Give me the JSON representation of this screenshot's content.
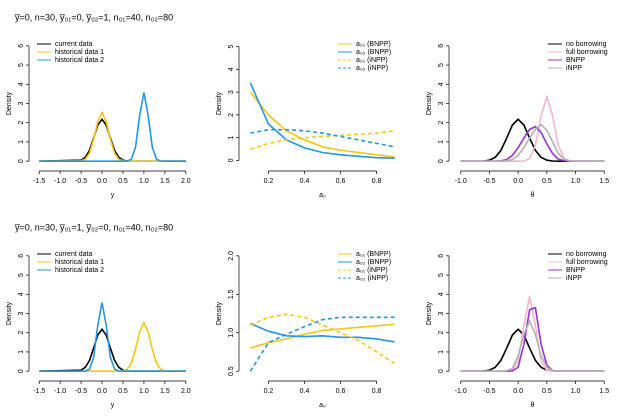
{
  "chart_data": [
    {
      "type": "line",
      "title": "y̅=0, n=30, y̅₀₁=0, y̅₀₂=1, n₀₁=40, n₀₂=80",
      "xlabel": "y",
      "ylabel": "Density",
      "legend": "top-left",
      "x": [
        -1.5,
        -0.5,
        -0.4,
        -0.3,
        -0.2,
        -0.1,
        0,
        0.1,
        0.2,
        0.3,
        0.4,
        0.5,
        0.6,
        0.7,
        0.8,
        0.9,
        1.0,
        1.1,
        1.2,
        1.3,
        1.4,
        1.5,
        2.0
      ],
      "xlim": [
        -1.6,
        2.1
      ],
      "xticks": [
        -1.5,
        {
          "value": -1,
          "label": "-1.0"
        },
        -0.5,
        {
          "value": 0,
          "label": "0.0"
        },
        0.5,
        {
          "value": 1,
          "label": "1.0"
        },
        1.5,
        {
          "value": 2,
          "label": "2.0"
        }
      ],
      "ylim": [
        -0.2,
        6.2
      ],
      "yticks": [
        0,
        1,
        2,
        3,
        4,
        5,
        6
      ],
      "series": [
        {
          "name": "current data",
          "color": "#000000",
          "values": [
            0,
            0.05,
            0.2,
            0.56,
            1.2,
            1.88,
            2.18,
            1.88,
            1.2,
            0.56,
            0.2,
            0.05,
            0.01,
            0,
            0,
            0,
            0,
            0,
            0,
            0,
            0,
            0,
            0
          ]
        },
        {
          "name": "historical data 1",
          "color": "#f5c710",
          "values": [
            0,
            0.02,
            0.1,
            0.42,
            1.13,
            2.06,
            2.52,
            2.06,
            1.13,
            0.42,
            0.1,
            0.02,
            0,
            0,
            0,
            0,
            0,
            0,
            0,
            0,
            0,
            0,
            0
          ]
        },
        {
          "name": "historical data 2",
          "color": "#2297e6",
          "values": [
            0,
            0,
            0,
            0,
            0,
            0,
            0,
            0,
            0,
            0,
            0,
            0,
            0.01,
            0.1,
            0.72,
            2.39,
            3.57,
            2.39,
            0.72,
            0.1,
            0.01,
            0,
            0
          ]
        }
      ]
    },
    {
      "type": "line",
      "xlabel": "a₀",
      "ylabel": "Density",
      "legend": "top-right",
      "x": [
        0.1,
        0.2,
        0.3,
        0.4,
        0.5,
        0.6,
        0.7,
        0.8,
        0.9
      ],
      "xlim": [
        0.07,
        0.93
      ],
      "xticks": [
        0.2,
        0.4,
        0.6,
        0.8
      ],
      "ylim": [
        -0.2,
        5.2
      ],
      "yticks": [
        0,
        1,
        2,
        3,
        4,
        5
      ],
      "series": [
        {
          "name": "a₀₁ (BNPP)",
          "color": "#f5c710",
          "dash": false,
          "values": [
            3.0,
            2.0,
            1.3,
            0.9,
            0.6,
            0.45,
            0.35,
            0.25,
            0.15
          ]
        },
        {
          "name": "a₀₂ (BNPP)",
          "color": "#2297e6",
          "dash": false,
          "values": [
            3.4,
            1.6,
            0.9,
            0.55,
            0.35,
            0.25,
            0.18,
            0.12,
            0.1
          ]
        },
        {
          "name": "a₀₁ (iNPP)",
          "color": "#f5c710",
          "dash": true,
          "values": [
            0.5,
            0.75,
            0.9,
            1.0,
            1.05,
            1.1,
            1.15,
            1.2,
            1.3
          ]
        },
        {
          "name": "a₀₂ (iNPP)",
          "color": "#2297e6",
          "dash": true,
          "values": [
            1.2,
            1.35,
            1.35,
            1.3,
            1.2,
            1.05,
            0.9,
            0.75,
            0.6
          ]
        }
      ]
    },
    {
      "type": "line",
      "xlabel": "θ",
      "ylabel": "Density",
      "legend": "top-right",
      "x": [
        -1.0,
        -0.6,
        -0.5,
        -0.4,
        -0.3,
        -0.2,
        -0.1,
        0,
        0.1,
        0.2,
        0.3,
        0.4,
        0.5,
        0.6,
        0.7,
        0.8,
        0.9,
        1.0,
        1.5
      ],
      "xlim": [
        -1.1,
        1.6
      ],
      "xticks": [
        {
          "value": -1,
          "label": "-1.0"
        },
        -0.5,
        {
          "value": 0,
          "label": "0.0"
        },
        0.5,
        {
          "value": 1,
          "label": "1.0"
        },
        1.5
      ],
      "ylim": [
        -0.2,
        6.2
      ],
      "yticks": [
        0,
        1,
        2,
        3,
        4,
        5,
        6
      ],
      "series": [
        {
          "name": "no borrowing",
          "color": "#000000",
          "values": [
            0,
            0.01,
            0.05,
            0.2,
            0.56,
            1.2,
            1.88,
            2.18,
            1.88,
            1.2,
            0.56,
            0.2,
            0.05,
            0.01,
            0,
            0,
            0,
            0,
            0
          ]
        },
        {
          "name": "full borrowing",
          "color": "#f7b6c8",
          "values": [
            0,
            0,
            0,
            0,
            0,
            0,
            0,
            0,
            0.01,
            0.14,
            0.83,
            2.36,
            3.35,
            2.36,
            0.83,
            0.14,
            0.01,
            0,
            0
          ]
        },
        {
          "name": "BNPP",
          "color": "#9b30d9",
          "values": [
            0,
            0,
            0,
            0,
            0.02,
            0.08,
            0.3,
            0.7,
            1.2,
            1.65,
            1.8,
            1.5,
            0.9,
            0.4,
            0.1,
            0.02,
            0,
            0,
            0
          ]
        },
        {
          "name": "iNPP",
          "color": "#b3b3b3",
          "values": [
            0,
            0,
            0,
            0,
            0,
            0.02,
            0.08,
            0.3,
            0.7,
            1.2,
            1.65,
            1.9,
            1.6,
            1.0,
            0.4,
            0.1,
            0.02,
            0,
            0
          ]
        }
      ]
    },
    {
      "type": "line",
      "title": "y̅=0, n=30, y̅₀₁=1, y̅₀₂=0, n₀₁=40, n₀₂=80",
      "xlabel": "y",
      "ylabel": "Density",
      "legend": "top-left",
      "x": [
        -1.5,
        -0.5,
        -0.4,
        -0.3,
        -0.2,
        -0.1,
        0,
        0.1,
        0.2,
        0.3,
        0.4,
        0.5,
        0.6,
        0.7,
        0.8,
        0.9,
        1.0,
        1.1,
        1.2,
        1.3,
        1.4,
        1.5,
        2.0
      ],
      "xlim": [
        -1.6,
        2.1
      ],
      "xticks": [
        -1.5,
        {
          "value": -1,
          "label": "-1.0"
        },
        -0.5,
        {
          "value": 0,
          "label": "0.0"
        },
        0.5,
        {
          "value": 1,
          "label": "1.0"
        },
        1.5,
        {
          "value": 2,
          "label": "2.0"
        }
      ],
      "ylim": [
        -0.2,
        6.2
      ],
      "yticks": [
        0,
        1,
        2,
        3,
        4,
        5,
        6
      ],
      "series": [
        {
          "name": "current data",
          "color": "#000000",
          "values": [
            0,
            0.05,
            0.2,
            0.56,
            1.2,
            1.88,
            2.18,
            1.88,
            1.2,
            0.56,
            0.2,
            0.05,
            0.01,
            0,
            0,
            0,
            0,
            0,
            0,
            0,
            0,
            0,
            0
          ]
        },
        {
          "name": "historical data 1",
          "color": "#f5c710",
          "values": [
            0,
            0,
            0,
            0,
            0,
            0,
            0,
            0,
            0,
            0,
            0,
            0.02,
            0.1,
            0.42,
            1.13,
            2.06,
            2.52,
            2.06,
            1.13,
            0.42,
            0.1,
            0.02,
            0
          ]
        },
        {
          "name": "historical data 2",
          "color": "#2297e6",
          "values": [
            0,
            0,
            0.01,
            0.1,
            0.72,
            2.39,
            3.57,
            2.39,
            0.72,
            0.1,
            0.01,
            0,
            0,
            0,
            0,
            0,
            0,
            0,
            0,
            0,
            0,
            0,
            0
          ]
        }
      ]
    },
    {
      "type": "line",
      "xlabel": "a₀",
      "ylabel": "Density",
      "legend": "top-right",
      "x": [
        0.1,
        0.2,
        0.3,
        0.4,
        0.5,
        0.6,
        0.7,
        0.8,
        0.9
      ],
      "xlim": [
        0.07,
        0.93
      ],
      "xticks": [
        0.2,
        0.4,
        0.6,
        0.8
      ],
      "ylim": [
        0.45,
        2.05
      ],
      "yticks": [
        0.5,
        {
          "value": 1,
          "label": "1.0"
        },
        1.5,
        {
          "value": 2,
          "label": "2.0"
        }
      ],
      "series": [
        {
          "name": "a₀₁ (BNPP)",
          "color": "#f5c710",
          "dash": false,
          "values": [
            0.8,
            0.87,
            0.92,
            0.98,
            1.03,
            1.05,
            1.07,
            1.09,
            1.11
          ]
        },
        {
          "name": "a₀₂ (BNPP)",
          "color": "#2297e6",
          "dash": false,
          "values": [
            1.12,
            1.02,
            0.96,
            0.95,
            0.96,
            0.94,
            0.94,
            0.92,
            0.88
          ]
        },
        {
          "name": "a₀₁ (iNPP)",
          "color": "#f5c710",
          "dash": true,
          "values": [
            1.1,
            1.2,
            1.24,
            1.2,
            1.1,
            1.0,
            0.9,
            0.75,
            0.6
          ]
        },
        {
          "name": "a₀₂ (iNPP)",
          "color": "#2297e6",
          "dash": true,
          "values": [
            0.5,
            0.87,
            0.98,
            1.08,
            1.17,
            1.2,
            1.2,
            1.2,
            1.2
          ]
        }
      ]
    },
    {
      "type": "line",
      "xlabel": "θ",
      "ylabel": "Density",
      "legend": "top-right",
      "x": [
        -1.0,
        -0.6,
        -0.5,
        -0.4,
        -0.3,
        -0.2,
        -0.1,
        0,
        0.1,
        0.2,
        0.3,
        0.4,
        0.5,
        0.6,
        0.7,
        0.8,
        0.9,
        1.0,
        1.5
      ],
      "xlim": [
        -1.1,
        1.6
      ],
      "xticks": [
        {
          "value": -1,
          "label": "-1.0"
        },
        -0.5,
        {
          "value": 0,
          "label": "0.0"
        },
        0.5,
        {
          "value": 1,
          "label": "1.0"
        },
        1.5
      ],
      "ylim": [
        -0.2,
        6.2
      ],
      "yticks": [
        0,
        1,
        2,
        3,
        4,
        5,
        6
      ],
      "series": [
        {
          "name": "no borrowing",
          "color": "#000000",
          "values": [
            0,
            0.01,
            0.05,
            0.2,
            0.56,
            1.2,
            1.88,
            2.18,
            1.88,
            1.2,
            0.56,
            0.2,
            0.05,
            0.01,
            0,
            0,
            0,
            0,
            0
          ]
        },
        {
          "name": "full borrowing",
          "color": "#f7b6c8",
          "values": [
            0,
            0,
            0,
            0,
            0,
            0,
            0.04,
            0.53,
            2.37,
            3.9,
            2.37,
            0.53,
            0.04,
            0,
            0,
            0,
            0,
            0,
            0
          ]
        },
        {
          "name": "BNPP",
          "color": "#9b30d9",
          "values": [
            0,
            0,
            0,
            0,
            0,
            0,
            0.02,
            0.2,
            1.4,
            3.2,
            3.3,
            1.4,
            0.3,
            0.03,
            0,
            0,
            0,
            0,
            0
          ]
        },
        {
          "name": "iNPP",
          "color": "#b3b3b3",
          "values": [
            0,
            0,
            0,
            0,
            0,
            0.02,
            0.15,
            0.8,
            1.9,
            2.6,
            1.9,
            0.8,
            0.2,
            0.03,
            0,
            0,
            0,
            0,
            0
          ]
        }
      ]
    }
  ]
}
